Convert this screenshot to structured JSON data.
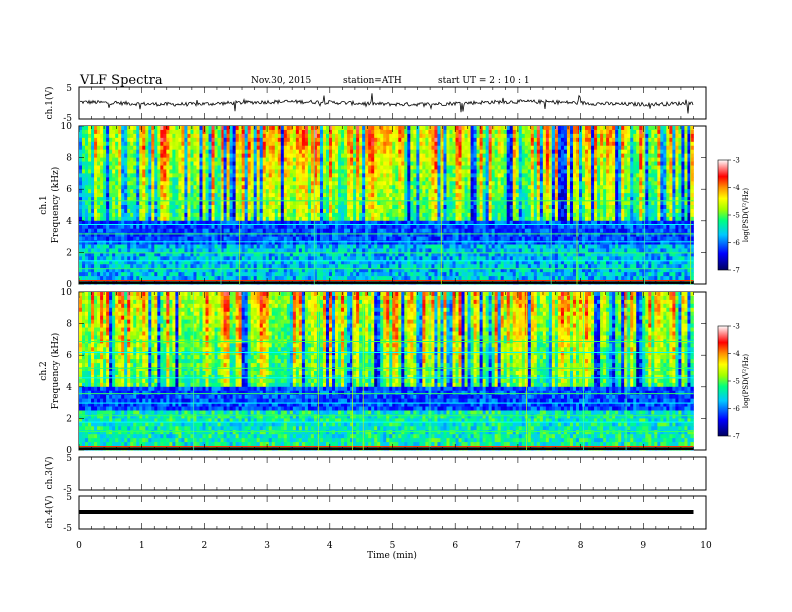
{
  "header": {
    "title": "VLF  Spectra",
    "date": "Nov.30, 2015",
    "station": "station=ATH",
    "start": "start  UT  =   2  : 10 : 1"
  },
  "chart_data": [
    {
      "type": "line",
      "name": "ch1-waveform",
      "ylabel": "ch.1(V)",
      "ylim": [
        -5,
        5
      ],
      "y_ticks": [
        "5",
        "-5"
      ],
      "baseline_v": 0,
      "noise_amplitude_v": 0.6
    },
    {
      "type": "heatmap",
      "name": "ch1-spectrogram",
      "ylabel_top": "ch.1",
      "ylabel": "Frequency  (kHz)",
      "ylim": [
        0,
        10
      ],
      "y_ticks": [
        "0",
        "2",
        "4",
        "6",
        "8",
        "10"
      ],
      "colorbar": {
        "label": "log(PSD(V²/Hz)",
        "range": [
          -7,
          -3
        ],
        "ticks": [
          "-3",
          "-4",
          "-5",
          "-6",
          "-7"
        ]
      }
    },
    {
      "type": "heatmap",
      "name": "ch2-spectrogram",
      "ylabel_top": "ch.2",
      "ylabel": "Frequency  (kHz)",
      "ylim": [
        0,
        10
      ],
      "y_ticks": [
        "0",
        "2",
        "4",
        "6",
        "8",
        "10"
      ],
      "colorbar": {
        "label": "log(PSD(V²/Hz)",
        "range": [
          -7,
          -3
        ],
        "ticks": [
          "-3",
          "-4",
          "-5",
          "-6",
          "-7"
        ]
      }
    },
    {
      "type": "line",
      "name": "ch3-waveform",
      "ylabel": "ch.3(V)",
      "ylim": [
        -5,
        5
      ],
      "y_ticks": [
        "5",
        "-5"
      ],
      "note_values": "flat, no signal"
    },
    {
      "type": "line",
      "name": "ch4-waveform",
      "ylabel": "ch.4(V)",
      "ylim": [
        -5,
        5
      ],
      "y_ticks": [
        "5",
        "-5"
      ],
      "baseline_v": 0
    }
  ],
  "xaxis": {
    "label": "Time  (min)",
    "xlim": [
      0,
      10
    ],
    "ticks": [
      "0",
      "1",
      "2",
      "3",
      "4",
      "5",
      "6",
      "7",
      "8",
      "9",
      "10"
    ],
    "data_end_min": 9.8
  }
}
